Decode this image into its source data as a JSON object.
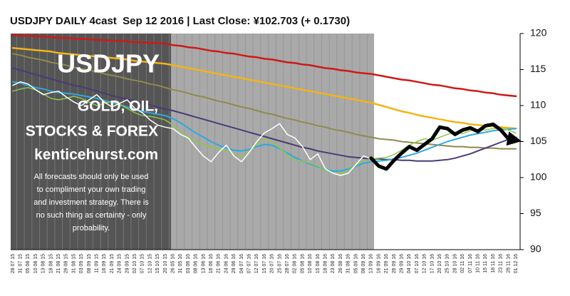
{
  "chart_data": {
    "type": "line",
    "title": "USDJPY DAILY 4cast  Sep 12 2016 | Last Close: ¥102.703 (+ 0.1730)",
    "brand": "USDJPY",
    "promo": [
      "GOLD, OIL,",
      "STOCKS & FOREX",
      "kenticehurst.com"
    ],
    "disclaimer": [
      "All forecasts should only be used",
      "to compliment your own trading",
      "and investment strategy. There is",
      "no such thing as certainty - only",
      "probability."
    ],
    "ylim": [
      90,
      120
    ],
    "yticks": [
      90,
      95,
      100,
      105,
      110,
      115,
      120
    ],
    "categories": [
      "28 07 15",
      "31 07 15",
      "05 08 15",
      "10 08 15",
      "13 08 15",
      "18 08 15",
      "21 08 15",
      "26 08 15",
      "31 08 15",
      "03 09 15",
      "08 09 15",
      "11 09 15",
      "16 09 15",
      "21 09 15",
      "24 09 15",
      "29 09 15",
      "02 10 15",
      "07 10 15",
      "12 10 15",
      "15 10 15",
      "20 10 15",
      "26 05 16",
      "31 05 16",
      "03 06 16",
      "08 06 16",
      "13 06 16",
      "16 06 16",
      "21 06 16",
      "24 06 16",
      "29 06 16",
      "04 07 16",
      "07 07 16",
      "12 07 16",
      "15 07 16",
      "20 07 16",
      "25 07 16",
      "28 07 16",
      "02 08 16",
      "05 08 16",
      "10 08 16",
      "15 08 16",
      "18 08 16",
      "23 08 16",
      "26 08 16",
      "31 08 16",
      "05 09 16",
      "08 09 16",
      "13 09 16",
      "16 09 16",
      "21 09 16",
      "26 09 16",
      "29 09 16",
      "04 10 16",
      "07 10 16",
      "12 10 16",
      "17 10 16",
      "20 10 16",
      "25 10 16",
      "28 10 16",
      "02 11 16",
      "07 11 16",
      "10 11 16",
      "15 11 16",
      "18 11 16",
      "23 11 16",
      "28 11 16",
      "01 12 16"
    ],
    "series": [
      {
        "color": "#d01818",
        "width": 2.5,
        "values": [
          119.8,
          119.7,
          119.7,
          119.6,
          119.6,
          119.5,
          119.4,
          119.4,
          119.3,
          119.3,
          119.2,
          119.1,
          119.1,
          119.0,
          119.0,
          118.9,
          118.8,
          118.8,
          118.7,
          118.7,
          118.6,
          118.4,
          118.3,
          118.1,
          118.0,
          117.8,
          117.6,
          117.5,
          117.3,
          117.2,
          117.0,
          116.8,
          116.7,
          116.5,
          116.4,
          116.2,
          116.0,
          115.9,
          115.7,
          115.6,
          115.4,
          115.2,
          115.1,
          114.9,
          114.8,
          114.6,
          114.5,
          114.4,
          114.2,
          114.0,
          113.8,
          113.6,
          113.5,
          113.3,
          113.1,
          112.9,
          112.8,
          112.6,
          112.4,
          112.3,
          112.1,
          112.0,
          111.8,
          111.7,
          111.5,
          111.4,
          111.3
        ]
      },
      {
        "color": "#f2b418",
        "width": 2.5,
        "values": [
          118.0,
          117.9,
          117.8,
          117.7,
          117.6,
          117.5,
          117.3,
          117.2,
          117.1,
          117.0,
          116.9,
          116.8,
          116.7,
          116.6,
          116.5,
          116.4,
          116.2,
          116.1,
          116.0,
          115.9,
          115.8,
          115.6,
          115.4,
          115.2,
          115.0,
          114.8,
          114.6,
          114.4,
          114.2,
          114.0,
          113.8,
          113.6,
          113.4,
          113.2,
          113.0,
          112.8,
          112.6,
          112.4,
          112.2,
          112.0,
          111.8,
          111.6,
          111.4,
          111.2,
          111.0,
          110.8,
          110.6,
          110.4,
          110.1,
          109.8,
          109.5,
          109.2,
          109.0,
          108.7,
          108.5,
          108.3,
          108.1,
          107.9,
          107.7,
          107.6,
          107.4,
          107.3,
          107.2,
          107.1,
          107.0,
          106.9,
          106.8
        ]
      },
      {
        "color": "#8f8a4e",
        "width": 2,
        "values": [
          117.2,
          117.0,
          116.7,
          116.5,
          116.3,
          116.0,
          115.8,
          115.6,
          115.3,
          115.1,
          114.9,
          114.7,
          114.4,
          114.2,
          114.0,
          113.7,
          113.5,
          113.3,
          113.0,
          112.8,
          112.5,
          112.2,
          112.0,
          111.7,
          111.4,
          111.2,
          110.9,
          110.6,
          110.4,
          110.1,
          109.8,
          109.6,
          109.3,
          109.0,
          108.8,
          108.5,
          108.2,
          108.0,
          107.7,
          107.5,
          107.2,
          107.0,
          106.7,
          106.5,
          106.3,
          106.0,
          105.8,
          105.6,
          105.4,
          105.3,
          105.2,
          105.0,
          104.9,
          104.8,
          104.7,
          104.6,
          104.5,
          104.4,
          104.3,
          104.3,
          104.2,
          104.2,
          104.1,
          104.1,
          104.0,
          104.0,
          104.0
        ]
      },
      {
        "color": "#4a3a7a",
        "width": 2,
        "values": [
          115.2,
          114.9,
          114.6,
          114.3,
          114.0,
          113.7,
          113.4,
          113.1,
          112.8,
          112.6,
          112.3,
          112.0,
          111.7,
          111.4,
          111.1,
          110.9,
          110.6,
          110.3,
          110.1,
          109.8,
          109.5,
          109.3,
          109.0,
          108.7,
          108.4,
          108.1,
          107.8,
          107.5,
          107.2,
          106.9,
          106.6,
          106.3,
          106.0,
          105.7,
          105.4,
          105.1,
          104.8,
          104.5,
          104.2,
          104.0,
          103.7,
          103.5,
          103.3,
          103.1,
          102.9,
          102.8,
          102.7,
          102.6,
          102.6,
          102.5,
          102.5,
          102.4,
          102.4,
          102.3,
          102.3,
          102.3,
          102.4,
          102.5,
          102.7,
          103.0,
          103.3,
          103.7,
          104.1,
          104.5,
          104.9,
          105.3,
          105.6
        ]
      },
      {
        "color": "#2ea8e0",
        "width": 2,
        "values": [
          113.3,
          113.1,
          112.8,
          112.5,
          112.3,
          112.0,
          111.8,
          111.7,
          111.6,
          111.4,
          111.2,
          111.0,
          110.7,
          110.4,
          110.1,
          109.8,
          109.5,
          109.2,
          109.0,
          108.8,
          108.6,
          108.2,
          107.6,
          106.9,
          106.2,
          105.6,
          105.0,
          104.5,
          104.1,
          103.8,
          103.7,
          103.9,
          104.3,
          104.6,
          104.5,
          104.0,
          103.4,
          102.8,
          102.3,
          101.9,
          101.5,
          101.1,
          100.9,
          100.9,
          101.2,
          101.6,
          102.0,
          102.2,
          102.3,
          102.4,
          102.6,
          102.8,
          103.1,
          103.4,
          103.8,
          104.2,
          104.6,
          105.0,
          105.3,
          105.6,
          105.9,
          106.1,
          106.3,
          106.5,
          106.6,
          106.7,
          106.8
        ]
      },
      {
        "color": "#8cc84a",
        "width": 1.5,
        "values": [
          112.0,
          112.3,
          112.5,
          112.2,
          111.6,
          111.0,
          110.8,
          111.0,
          111.3,
          111.0,
          110.5,
          110.0,
          110.3,
          110.6,
          110.2,
          109.6,
          109.0,
          108.6,
          108.5,
          108.3,
          108.0,
          107.3,
          106.4,
          105.6,
          105.0,
          104.6,
          104.3,
          104.0,
          103.7,
          103.2,
          102.9,
          103.5,
          104.6,
          105.4,
          105.0,
          104.1,
          103.2,
          102.5,
          102.3,
          102.0,
          101.6,
          101.0,
          100.6,
          100.5,
          101.0,
          101.7,
          102.3,
          102.6,
          102.7,
          102.8,
          103.2,
          103.8,
          104.5,
          105.0,
          105.4,
          105.2,
          105.6,
          106.0,
          106.3,
          106.1,
          106.5,
          106.7,
          106.6,
          106.8,
          106.9,
          106.6,
          106.2
        ]
      },
      {
        "color": "#ffffff",
        "width": 1.5,
        "values": [
          112.8,
          113.3,
          113.0,
          112.2,
          111.5,
          111.8,
          112.0,
          111.2,
          110.5,
          110.0,
          110.8,
          111.5,
          110.5,
          109.8,
          110.3,
          110.8,
          109.6,
          109.0,
          108.0,
          107.3,
          107.0,
          106.8,
          106.0,
          105.5,
          104.2,
          103.0,
          102.2,
          103.5,
          104.5,
          103.0,
          102.2,
          103.5,
          105.0,
          106.2,
          106.8,
          107.5,
          106.0,
          105.5,
          104.3,
          102.5,
          103.3,
          101.2,
          100.6,
          100.3,
          100.6,
          101.8,
          103.0,
          102.6,
          null,
          null,
          null,
          null,
          null,
          null,
          null,
          null,
          null,
          null,
          null,
          null,
          null,
          null,
          null,
          null,
          null,
          null,
          null
        ]
      },
      {
        "color": "#000000",
        "width": 5,
        "arrow": true,
        "values": [
          null,
          null,
          null,
          null,
          null,
          null,
          null,
          null,
          null,
          null,
          null,
          null,
          null,
          null,
          null,
          null,
          null,
          null,
          null,
          null,
          null,
          null,
          null,
          null,
          null,
          null,
          null,
          null,
          null,
          null,
          null,
          null,
          null,
          null,
          null,
          null,
          null,
          null,
          null,
          null,
          null,
          null,
          null,
          null,
          null,
          null,
          null,
          102.7,
          101.6,
          101.2,
          102.4,
          103.4,
          104.3,
          103.8,
          104.6,
          105.4,
          107.0,
          106.8,
          106.0,
          106.6,
          106.9,
          106.4,
          107.2,
          107.4,
          106.6,
          105.4,
          105.2
        ]
      }
    ]
  }
}
